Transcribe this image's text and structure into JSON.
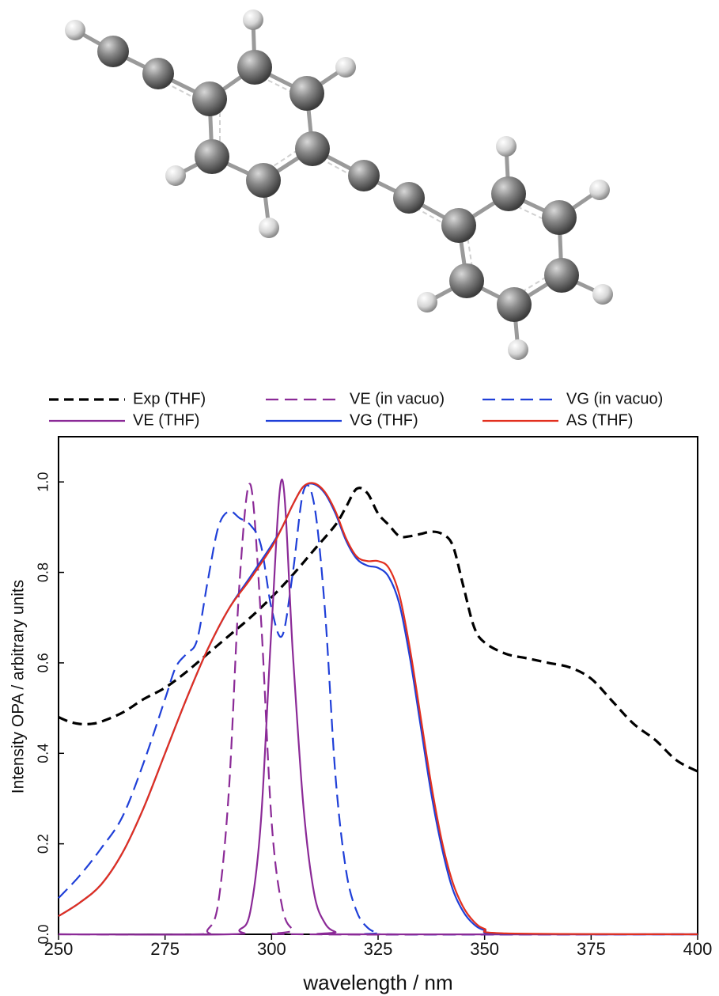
{
  "chart_data": {
    "type": "line",
    "xlabel": "wavelength / nm",
    "ylabel": "Intensity OPA / arbitrary units",
    "xlim": [
      250,
      400
    ],
    "xticks": [
      250,
      275,
      300,
      325,
      350,
      375,
      400
    ],
    "ylim": [
      0,
      1.1
    ],
    "yticks": [
      {
        "value": 0,
        "label": "0.0"
      },
      0.2,
      0.4,
      0.6,
      0.8,
      {
        "value": 1,
        "label": "1.0"
      }
    ],
    "legend": "top",
    "series": [
      {
        "name": "Exp (THF)",
        "color": "#000000",
        "style": "dashed",
        "x": [
          250,
          252.5,
          255,
          257.5,
          260,
          265,
          270,
          275,
          280,
          285,
          290,
          295,
          300,
          305,
          310,
          315,
          317.5,
          320,
          322.5,
          325,
          327.5,
          330,
          332.5,
          335,
          337.5,
          340,
          342.5,
          345,
          347.5,
          350,
          355,
          360,
          365,
          370,
          375,
          380,
          385,
          390,
          395,
          400
        ],
        "values": [
          0.48,
          0.47,
          0.465,
          0.465,
          0.47,
          0.49,
          0.52,
          0.545,
          0.58,
          0.62,
          0.66,
          0.7,
          0.745,
          0.795,
          0.85,
          0.905,
          0.945,
          0.985,
          0.975,
          0.93,
          0.905,
          0.88,
          0.88,
          0.885,
          0.89,
          0.885,
          0.86,
          0.77,
          0.68,
          0.645,
          0.62,
          0.61,
          0.6,
          0.59,
          0.565,
          0.515,
          0.465,
          0.43,
          0.385,
          0.36
        ]
      },
      {
        "name": "VE (in vacuo)",
        "color": "#8b2a97",
        "style": "dashed",
        "x": [
          250,
          282.5,
          285,
          287.5,
          290,
          292.5,
          295,
          297.5,
          300,
          302.5,
          305,
          307.5,
          400
        ],
        "values": [
          0,
          0,
          0.01,
          0.07,
          0.32,
          0.78,
          0.995,
          0.7,
          0.25,
          0.06,
          0.01,
          0,
          0
        ]
      },
      {
        "name": "VG (in vacuo)",
        "color": "#1f3fd8",
        "style": "dashed",
        "x": [
          250,
          255,
          260,
          265,
          270,
          275,
          277.5,
          280,
          282.5,
          285,
          287.5,
          290,
          292.5,
          295,
          297.5,
          300,
          302.5,
          305,
          307.5,
          310,
          312.5,
          315,
          317.5,
          320,
          322.5,
          325,
          327.5,
          400
        ],
        "values": [
          0.08,
          0.13,
          0.19,
          0.26,
          0.38,
          0.52,
          0.59,
          0.62,
          0.65,
          0.78,
          0.9,
          0.935,
          0.92,
          0.905,
          0.86,
          0.72,
          0.66,
          0.8,
          0.98,
          0.95,
          0.72,
          0.35,
          0.14,
          0.05,
          0.015,
          0.003,
          0,
          0
        ]
      },
      {
        "name": "VE (THF)",
        "color": "#8b2a97",
        "style": "solid",
        "x": [
          250,
          290,
          292.5,
          295,
          297.5,
          300,
          302.5,
          305,
          307.5,
          310,
          312.5,
          315,
          317.5,
          400
        ],
        "values": [
          0,
          0,
          0.01,
          0.05,
          0.25,
          0.68,
          1.005,
          0.62,
          0.28,
          0.09,
          0.025,
          0.005,
          0,
          0
        ]
      },
      {
        "name": "VG (THF)",
        "color": "#1f3fd8",
        "style": "solid",
        "x": [
          250,
          255,
          260,
          265,
          270,
          275,
          280,
          285,
          290,
          295,
          300,
          302.5,
          305,
          307.5,
          310,
          312.5,
          315,
          317.5,
          320,
          322.5,
          325,
          327.5,
          330,
          332.5,
          335,
          337.5,
          340,
          342.5,
          345,
          347.5,
          350,
          355,
          400
        ],
        "values": [
          0.04,
          0.07,
          0.11,
          0.18,
          0.28,
          0.4,
          0.52,
          0.63,
          0.72,
          0.79,
          0.86,
          0.9,
          0.95,
          0.99,
          0.995,
          0.975,
          0.93,
          0.87,
          0.83,
          0.815,
          0.81,
          0.79,
          0.73,
          0.61,
          0.46,
          0.31,
          0.19,
          0.1,
          0.05,
          0.022,
          0.009,
          0.001,
          0
        ]
      },
      {
        "name": "AS (THF)",
        "color": "#e2301f",
        "style": "solid",
        "x": [
          250,
          255,
          260,
          265,
          270,
          275,
          280,
          285,
          290,
          295,
          300,
          302.5,
          305,
          307.5,
          310,
          312.5,
          315,
          317.5,
          320,
          322.5,
          325,
          327.5,
          330,
          332.5,
          335,
          337.5,
          340,
          342.5,
          345,
          347.5,
          350,
          355,
          400
        ],
        "values": [
          0.04,
          0.07,
          0.11,
          0.18,
          0.28,
          0.4,
          0.52,
          0.63,
          0.72,
          0.785,
          0.855,
          0.9,
          0.95,
          0.99,
          0.997,
          0.978,
          0.935,
          0.875,
          0.835,
          0.825,
          0.825,
          0.81,
          0.75,
          0.63,
          0.48,
          0.33,
          0.205,
          0.115,
          0.06,
          0.028,
          0.012,
          0.002,
          0
        ]
      }
    ]
  }
}
